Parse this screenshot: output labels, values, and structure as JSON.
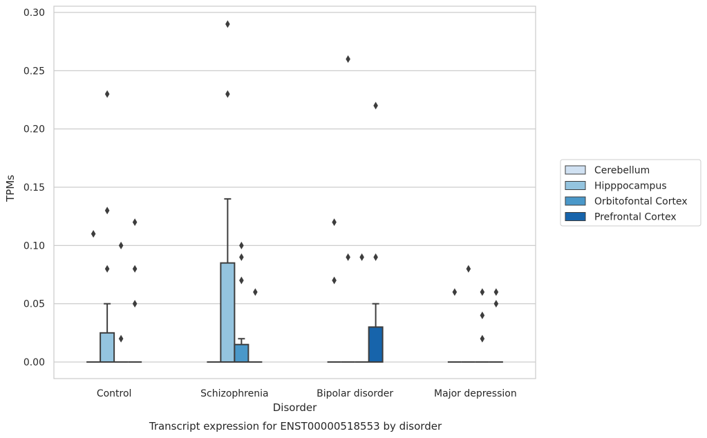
{
  "chart_data": {
    "type": "box",
    "title": "",
    "caption": "Transcript expression for ENST00000518553 by disorder",
    "xlabel": "Disorder",
    "ylabel": "TPMs",
    "ylim": [
      -0.014,
      0.305
    ],
    "y_ticks": [
      "0.00",
      "0.05",
      "0.10",
      "0.15",
      "0.20",
      "0.25",
      "0.30"
    ],
    "y_tick_values": [
      0,
      0.05,
      0.1,
      0.15,
      0.2,
      0.25,
      0.3
    ],
    "grid": "horizontal",
    "legend_position": "right",
    "categories": [
      "Control",
      "Schizophrenia",
      "Bipolar disorder",
      "Major depression"
    ],
    "series": [
      {
        "name": "Cerebellum",
        "color": "#d0e1f2",
        "boxes": [
          {
            "q1": 0,
            "median": 0,
            "q3": 0,
            "whisker_low": 0,
            "whisker_high": 0,
            "outliers": [
              0.11
            ]
          },
          {
            "q1": 0,
            "median": 0,
            "q3": 0,
            "whisker_low": 0,
            "whisker_high": 0,
            "outliers": []
          },
          {
            "q1": 0,
            "median": 0,
            "q3": 0,
            "whisker_low": 0,
            "whisker_high": 0,
            "outliers": [
              0.12,
              0.07
            ]
          },
          {
            "q1": 0,
            "median": 0,
            "q3": 0,
            "whisker_low": 0,
            "whisker_high": 0,
            "outliers": [
              0.06
            ]
          }
        ]
      },
      {
        "name": "Hipppocampus",
        "color": "#94c4df",
        "boxes": [
          {
            "q1": 0,
            "median": 0,
            "q3": 0.025,
            "whisker_low": 0,
            "whisker_high": 0.05,
            "outliers": [
              0.23,
              0.13,
              0.08
            ]
          },
          {
            "q1": 0,
            "median": 0,
            "q3": 0.085,
            "whisker_low": 0,
            "whisker_high": 0.14,
            "outliers": [
              0.29,
              0.23
            ]
          },
          {
            "q1": 0,
            "median": 0,
            "q3": 0,
            "whisker_low": 0,
            "whisker_high": 0,
            "outliers": [
              0.26,
              0.09
            ]
          },
          {
            "q1": 0,
            "median": 0,
            "q3": 0,
            "whisker_low": 0,
            "whisker_high": 0,
            "outliers": [
              0.08
            ]
          }
        ]
      },
      {
        "name": "Orbitofontal Cortex",
        "color": "#4a98c9",
        "boxes": [
          {
            "q1": 0,
            "median": 0,
            "q3": 0,
            "whisker_low": 0,
            "whisker_high": 0,
            "outliers": [
              0.1,
              0.02
            ]
          },
          {
            "q1": 0,
            "median": 0,
            "q3": 0.015,
            "whisker_low": 0,
            "whisker_high": 0.02,
            "outliers": [
              0.1,
              0.09,
              0.07
            ]
          },
          {
            "q1": 0,
            "median": 0,
            "q3": 0,
            "whisker_low": 0,
            "whisker_high": 0,
            "outliers": [
              0.09
            ]
          },
          {
            "q1": 0,
            "median": 0,
            "q3": 0,
            "whisker_low": 0,
            "whisker_high": 0,
            "outliers": [
              0.06,
              0.04,
              0.02
            ]
          }
        ]
      },
      {
        "name": "Prefrontal Cortex",
        "color": "#1764ab",
        "boxes": [
          {
            "q1": 0,
            "median": 0,
            "q3": 0,
            "whisker_low": 0,
            "whisker_high": 0,
            "outliers": [
              0.12,
              0.08,
              0.05
            ]
          },
          {
            "q1": 0,
            "median": 0,
            "q3": 0,
            "whisker_low": 0,
            "whisker_high": 0,
            "outliers": [
              0.06
            ]
          },
          {
            "q1": 0,
            "median": 0,
            "q3": 0.03,
            "whisker_low": 0,
            "whisker_high": 0.05,
            "outliers": [
              0.22,
              0.09
            ]
          },
          {
            "q1": 0,
            "median": 0,
            "q3": 0,
            "whisker_low": 0,
            "whisker_high": 0,
            "outliers": [
              0.06,
              0.05
            ]
          }
        ]
      }
    ]
  }
}
